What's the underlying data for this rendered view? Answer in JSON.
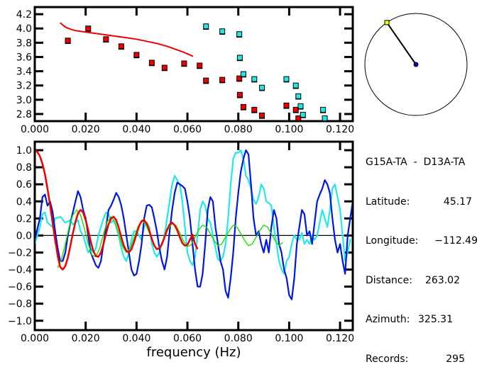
{
  "info_panel": {
    "station_pair": "G15A-TA  -  D13A-TA",
    "rows": [
      {
        "label": "Latitude:",
        "value": "45.17"
      },
      {
        "label": "Longitude:",
        "value": "-112.49"
      },
      {
        "label": "Distance:",
        "value": "263.02"
      },
      {
        "label": "Azimuth:",
        "value": "325.31"
      },
      {
        "label": "Records:",
        "value": "295"
      }
    ]
  },
  "colors": {
    "red": "#ee0000",
    "cyan": "#22e8e8",
    "blue": "#0018dd",
    "green": "#22dd00",
    "yellow": "#ffff00",
    "navy": "#0000cc"
  },
  "chart_data": [
    {
      "type": "scatter",
      "title": "",
      "xlabel": "",
      "ylabel": "",
      "xlim": [
        0.0,
        0.125
      ],
      "ylim": [
        2.7,
        4.3
      ],
      "xticks": [
        "0.000",
        "0.020",
        "0.040",
        "0.060",
        "0.080",
        "0.100",
        "0.120"
      ],
      "xtick_values": [
        0.0,
        0.02,
        0.04,
        0.06,
        0.08,
        0.1,
        0.12
      ],
      "yticks": [
        "2.8",
        "3.0",
        "3.2",
        "3.4",
        "3.6",
        "3.8",
        "4.0",
        "4.2"
      ],
      "ytick_values": [
        2.8,
        3.0,
        3.2,
        3.4,
        3.6,
        3.8,
        4.0,
        4.2
      ],
      "series": [
        {
          "name": "red-dispersion-points",
          "color": "red",
          "kind": "markers",
          "x": [
            0.013,
            0.021,
            0.028,
            0.034,
            0.04,
            0.046,
            0.051,
            0.0587,
            0.0648,
            0.0673,
            0.0737,
            0.0804,
            0.0806,
            0.082,
            0.0863,
            0.0893,
            0.0989,
            0.1026,
            0.1036
          ],
          "y": [
            3.83,
            4.0,
            3.85,
            3.75,
            3.63,
            3.52,
            3.45,
            3.51,
            3.48,
            3.27,
            3.28,
            3.3,
            3.07,
            2.9,
            2.86,
            2.78,
            2.92,
            2.86,
            2.74
          ]
        },
        {
          "name": "cyan-dispersion-points",
          "color": "cyan",
          "kind": "markers",
          "x": [
            0.0673,
            0.0737,
            0.0804,
            0.0806,
            0.082,
            0.0863,
            0.0893,
            0.0989,
            0.1026,
            0.1036,
            0.1045,
            0.1054,
            0.1133,
            0.114
          ],
          "y": [
            4.03,
            3.96,
            3.92,
            3.59,
            3.36,
            3.29,
            3.17,
            3.29,
            3.2,
            3.05,
            2.91,
            2.79,
            2.86,
            2.74
          ]
        },
        {
          "name": "red-dispersion-curve",
          "color": "red",
          "kind": "line",
          "x": [
            0.01,
            0.011,
            0.012,
            0.014,
            0.016,
            0.018,
            0.02,
            0.024,
            0.028,
            0.032,
            0.036,
            0.04,
            0.044,
            0.048,
            0.052,
            0.056,
            0.059,
            0.0622
          ],
          "y": [
            4.08,
            4.05,
            4.02,
            3.99,
            3.97,
            3.96,
            3.95,
            3.93,
            3.91,
            3.89,
            3.87,
            3.85,
            3.82,
            3.79,
            3.75,
            3.7,
            3.66,
            3.61
          ]
        }
      ]
    },
    {
      "type": "line",
      "title": "",
      "xlabel": "frequency (Hz)",
      "ylabel": "",
      "xlim": [
        0.0,
        0.125
      ],
      "ylim": [
        -1.11,
        1.1
      ],
      "xticks": [
        "0.000",
        "0.020",
        "0.040",
        "0.060",
        "0.080",
        "0.100",
        "0.120"
      ],
      "xtick_values": [
        0.0,
        0.02,
        0.04,
        0.06,
        0.08,
        0.1,
        0.12
      ],
      "yticks": [
        "-1.0",
        "-0.8",
        "-0.6",
        "-0.4",
        "-0.2",
        "0.0",
        "0.2",
        "0.4",
        "0.6",
        "0.8",
        "1.0"
      ],
      "ytick_values": [
        -1.0,
        -0.8,
        -0.6,
        -0.4,
        -0.2,
        0.0,
        0.2,
        0.4,
        0.6,
        0.8,
        1.0
      ],
      "zero_line": true,
      "series": [
        {
          "name": "cyan-correlation",
          "color": "cyan",
          "x": [
            0.0,
            0.002,
            0.003,
            0.004,
            0.005,
            0.007,
            0.008,
            0.01,
            0.012,
            0.014,
            0.015,
            0.016,
            0.017,
            0.018,
            0.019,
            0.02,
            0.021,
            0.022,
            0.023,
            0.024,
            0.025,
            0.026,
            0.027,
            0.028,
            0.029,
            0.03,
            0.031,
            0.032,
            0.033,
            0.034,
            0.035,
            0.036,
            0.037,
            0.038,
            0.039,
            0.04,
            0.041,
            0.042,
            0.043,
            0.044,
            0.045,
            0.046,
            0.047,
            0.048,
            0.049,
            0.05,
            0.051,
            0.052,
            0.053,
            0.054,
            0.055,
            0.056,
            0.057,
            0.058,
            0.059,
            0.06,
            0.061,
            0.062,
            0.063,
            0.064,
            0.065,
            0.066,
            0.067,
            0.068,
            0.069,
            0.07,
            0.071,
            0.072,
            0.073,
            0.074,
            0.075,
            0.076,
            0.077,
            0.078,
            0.079,
            0.08,
            0.081,
            0.082,
            0.083,
            0.084,
            0.085,
            0.086,
            0.087,
            0.088,
            0.089,
            0.09,
            0.091,
            0.092,
            0.093,
            0.094,
            0.095,
            0.096,
            0.097,
            0.098,
            0.099,
            0.1,
            0.101,
            0.102,
            0.103,
            0.104,
            0.105,
            0.106,
            0.107,
            0.108,
            0.109,
            0.11,
            0.111,
            0.112,
            0.113,
            0.114,
            0.115,
            0.116,
            0.117,
            0.118,
            0.119,
            0.12,
            0.121,
            0.122,
            0.123,
            0.124,
            0.125
          ],
          "y": [
            -0.1,
            0.1,
            0.25,
            0.27,
            0.15,
            0.1,
            0.2,
            0.22,
            0.15,
            0.18,
            0.13,
            0.15,
            0.18,
            0.05,
            0.0,
            -0.1,
            -0.2,
            -0.15,
            -0.2,
            -0.15,
            0.0,
            0.1,
            0.2,
            0.27,
            0.25,
            0.15,
            0.18,
            0.1,
            0.0,
            -0.15,
            -0.25,
            -0.3,
            -0.2,
            -0.05,
            0.05,
            0.05,
            0.0,
            -0.05,
            0.1,
            0.15,
            0.1,
            -0.1,
            -0.2,
            -0.25,
            -0.2,
            -0.1,
            0.0,
            0.2,
            0.4,
            0.6,
            0.7,
            0.65,
            0.6,
            0.4,
            0.1,
            -0.2,
            -0.3,
            -0.35,
            -0.25,
            0.0,
            0.3,
            0.4,
            0.35,
            0.2,
            0.15,
            0.0,
            -0.15,
            -0.28,
            -0.3,
            -0.25,
            -0.1,
            0.2,
            0.6,
            0.9,
            0.97,
            0.97,
            1.0,
            0.9,
            0.7,
            0.65,
            0.55,
            0.42,
            0.37,
            0.45,
            0.6,
            0.55,
            0.4,
            0.38,
            0.35,
            0.1,
            -0.1,
            -0.3,
            -0.4,
            -0.45,
            -0.3,
            -0.25,
            -0.1,
            0.0,
            -0.05,
            -0.05,
            0.03,
            -0.1,
            -0.05,
            -0.1,
            0.0,
            -0.05,
            0.0,
            0.15,
            0.3,
            0.2,
            0.1,
            0.3,
            0.55,
            0.6,
            0.45,
            0.3,
            0.0,
            -0.3,
            -0.2,
            -0.05,
            -0.05
          ]
        },
        {
          "name": "blue-correlation",
          "color": "blue",
          "x": [
            0.0,
            0.002,
            0.003,
            0.004,
            0.005,
            0.006,
            0.007,
            0.008,
            0.009,
            0.01,
            0.011,
            0.012,
            0.013,
            0.014,
            0.016,
            0.017,
            0.018,
            0.019,
            0.02,
            0.021,
            0.022,
            0.024,
            0.025,
            0.026,
            0.027,
            0.028,
            0.029,
            0.03,
            0.031,
            0.032,
            0.033,
            0.034,
            0.035,
            0.036,
            0.037,
            0.038,
            0.039,
            0.04,
            0.041,
            0.042,
            0.043,
            0.044,
            0.045,
            0.046,
            0.047,
            0.048,
            0.049,
            0.05,
            0.051,
            0.052,
            0.053,
            0.054,
            0.055,
            0.056,
            0.057,
            0.058,
            0.059,
            0.06,
            0.061,
            0.062,
            0.063,
            0.064,
            0.065,
            0.066,
            0.067,
            0.068,
            0.069,
            0.07,
            0.071,
            0.072,
            0.073,
            0.074,
            0.075,
            0.076,
            0.077,
            0.078,
            0.079,
            0.08,
            0.081,
            0.082,
            0.083,
            0.084,
            0.085,
            0.086,
            0.087,
            0.088,
            0.089,
            0.09,
            0.091,
            0.092,
            0.093,
            0.094,
            0.095,
            0.096,
            0.097,
            0.098,
            0.099,
            0.1,
            0.101,
            0.102,
            0.103,
            0.104,
            0.105,
            0.106,
            0.107,
            0.108,
            0.109,
            0.11,
            0.111,
            0.112,
            0.113,
            0.114,
            0.115,
            0.116,
            0.117,
            0.118,
            0.119,
            0.12,
            0.121,
            0.122,
            0.123,
            0.124,
            0.125
          ],
          "y": [
            -0.05,
            0.2,
            0.45,
            0.48,
            0.35,
            0.4,
            0.28,
            0.05,
            -0.15,
            -0.3,
            -0.3,
            -0.2,
            0.0,
            0.15,
            0.4,
            0.52,
            0.45,
            0.3,
            0.2,
            0.0,
            -0.2,
            -0.35,
            -0.38,
            -0.3,
            -0.1,
            0.1,
            0.3,
            0.35,
            0.42,
            0.5,
            0.45,
            0.35,
            0.2,
            0.0,
            -0.2,
            -0.4,
            -0.47,
            -0.45,
            -0.3,
            -0.1,
            0.2,
            0.35,
            0.36,
            0.33,
            0.2,
            0.05,
            -0.15,
            -0.3,
            -0.4,
            -0.25,
            0.05,
            0.3,
            0.5,
            0.62,
            0.6,
            0.58,
            0.55,
            0.4,
            0.2,
            -0.1,
            -0.4,
            -0.6,
            -0.6,
            -0.45,
            -0.1,
            0.3,
            0.45,
            0.4,
            0.1,
            -0.1,
            -0.3,
            -0.4,
            -0.65,
            -0.73,
            -0.5,
            -0.2,
            0.2,
            0.5,
            0.75,
            0.9,
            1.0,
            0.95,
            0.6,
            0.2,
            0.0,
            0.05,
            -0.1,
            -0.2,
            -0.05,
            -0.2,
            0.1,
            0.3,
            0.2,
            -0.1,
            -0.2,
            -0.4,
            -0.5,
            -0.7,
            -0.75,
            -0.5,
            -0.1,
            0.1,
            0.3,
            0.25,
            0.0,
            0.05,
            -0.1,
            0.15,
            0.4,
            0.48,
            0.55,
            0.65,
            0.6,
            0.5,
            0.2,
            -0.05,
            -0.2,
            -0.1,
            -0.3,
            -0.45,
            0.0,
            0.2,
            0.4
          ]
        },
        {
          "name": "green-model",
          "color": "green",
          "x": [
            0.009,
            0.0105,
            0.012,
            0.0135,
            0.015,
            0.0165,
            0.018,
            0.0195,
            0.021,
            0.0225,
            0.024,
            0.0255,
            0.027,
            0.0285,
            0.03,
            0.0315,
            0.033,
            0.0345,
            0.036,
            0.0375,
            0.039,
            0.0405,
            0.042,
            0.0435,
            0.045,
            0.0465,
            0.048,
            0.0495,
            0.051,
            0.0525,
            0.054,
            0.0555,
            0.057,
            0.0585,
            0.06,
            0.0615,
            0.063,
            0.0645,
            0.066,
            0.0675,
            0.069,
            0.0705,
            0.072,
            0.0735,
            0.075,
            0.0765,
            0.078,
            0.0795,
            0.081,
            0.0825,
            0.084,
            0.0855,
            0.087,
            0.0885,
            0.09,
            0.0915,
            0.093,
            0.0945,
            0.096,
            0.0975
          ],
          "y": [
            -0.38,
            -0.28,
            -0.1,
            0.1,
            0.24,
            0.3,
            0.24,
            0.08,
            -0.1,
            -0.23,
            -0.25,
            -0.15,
            0.02,
            0.16,
            0.22,
            0.16,
            0.02,
            -0.13,
            -0.2,
            -0.15,
            -0.03,
            0.1,
            0.17,
            0.14,
            0.03,
            -0.09,
            -0.16,
            -0.12,
            -0.02,
            0.08,
            0.14,
            0.12,
            0.03,
            -0.07,
            -0.13,
            -0.11,
            -0.02,
            0.07,
            0.12,
            0.1,
            0.02,
            -0.06,
            -0.12,
            -0.1,
            -0.02,
            0.06,
            0.12,
            0.1,
            0.02,
            -0.06,
            -0.12,
            -0.1,
            -0.02,
            0.06,
            0.12,
            0.1,
            0.02,
            -0.06,
            -0.12,
            -0.08
          ]
        },
        {
          "name": "red-model",
          "color": "red",
          "x": [
            0.0,
            0.001,
            0.002,
            0.003,
            0.004,
            0.005,
            0.006,
            0.007,
            0.008,
            0.009,
            0.01,
            0.011,
            0.012,
            0.013,
            0.014,
            0.015,
            0.016,
            0.017,
            0.018,
            0.019,
            0.02,
            0.021,
            0.022,
            0.023,
            0.024,
            0.025,
            0.026,
            0.027,
            0.028,
            0.029,
            0.03,
            0.031,
            0.032,
            0.033,
            0.034,
            0.035,
            0.036,
            0.037,
            0.038,
            0.039,
            0.04,
            0.041,
            0.042,
            0.043,
            0.044,
            0.045,
            0.046,
            0.047,
            0.048,
            0.049,
            0.05,
            0.051,
            0.052,
            0.053,
            0.054,
            0.055,
            0.056,
            0.057,
            0.058,
            0.059,
            0.06,
            0.061,
            0.062,
            0.063,
            0.064
          ],
          "y": [
            1.0,
            0.98,
            0.93,
            0.84,
            0.72,
            0.55,
            0.36,
            0.15,
            -0.05,
            -0.24,
            -0.37,
            -0.4,
            -0.36,
            -0.26,
            -0.12,
            0.03,
            0.16,
            0.26,
            0.3,
            0.27,
            0.18,
            0.06,
            -0.07,
            -0.18,
            -0.24,
            -0.25,
            -0.2,
            -0.1,
            0.02,
            0.13,
            0.2,
            0.22,
            0.18,
            0.09,
            -0.02,
            -0.12,
            -0.18,
            -0.2,
            -0.16,
            -0.08,
            0.02,
            0.11,
            0.17,
            0.18,
            0.14,
            0.06,
            -0.04,
            -0.12,
            -0.16,
            -0.15,
            -0.1,
            -0.02,
            0.07,
            0.13,
            0.15,
            0.12,
            0.06,
            -0.02,
            -0.09,
            -0.12,
            -0.11,
            -0.05,
            0.01,
            -0.1,
            -0.16
          ]
        }
      ]
    },
    {
      "type": "scatter",
      "title": "azimuth-compass",
      "description": "circle map showing station pair direction",
      "azimuth_deg": 325.31,
      "series": [
        {
          "name": "center-station",
          "color": "navy"
        },
        {
          "name": "remote-station",
          "color": "yellow"
        }
      ]
    }
  ]
}
